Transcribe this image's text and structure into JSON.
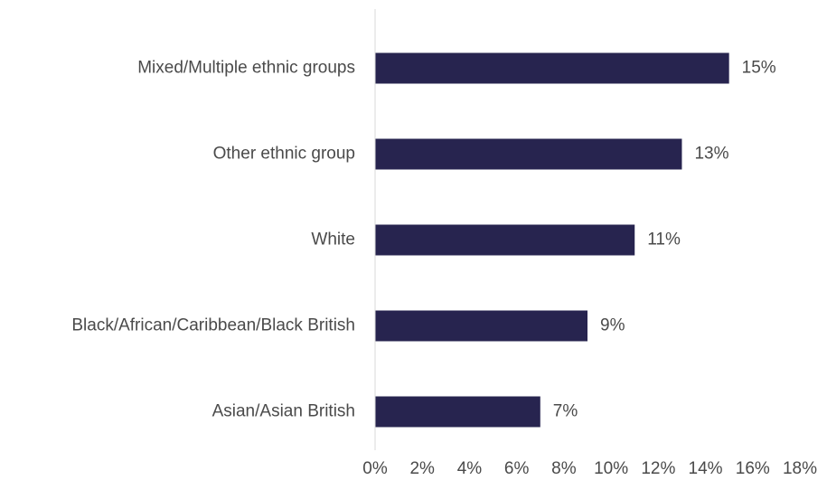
{
  "chart_data": {
    "type": "bar",
    "orientation": "horizontal",
    "categories": [
      "Mixed/Multiple ethnic groups",
      "Other ethnic group",
      "White",
      "Black/African/Caribbean/Black British",
      "Asian/Asian British"
    ],
    "values": [
      15,
      13,
      11,
      9,
      7
    ],
    "value_labels": [
      "15%",
      "13%",
      "11%",
      "9%",
      "7%"
    ],
    "xlim": [
      0,
      18
    ],
    "x_ticks": [
      0,
      2,
      4,
      6,
      8,
      10,
      12,
      14,
      16,
      18
    ],
    "x_tick_labels": [
      "0%",
      "2%",
      "4%",
      "6%",
      "8%",
      "10%",
      "12%",
      "14%",
      "16%",
      "18%"
    ],
    "grid": false,
    "bar_color": "#27244f",
    "axis_color": "#d9d9d9"
  }
}
